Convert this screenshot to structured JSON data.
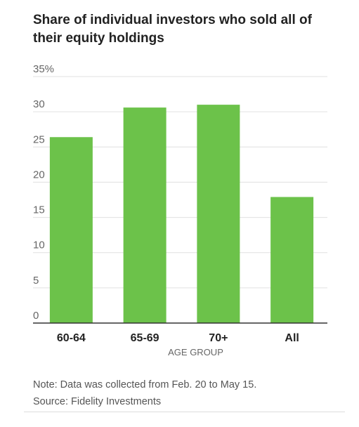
{
  "title": "Share of individual investors who sold all of their equity holdings",
  "note": "Note: Data was collected from Feb. 20 to May 15.",
  "source": "Source: Fidelity Investments",
  "colors": {
    "bar": "#6cc24a",
    "grid": "#e0e0e0",
    "axis": "#333333"
  },
  "chart_data": {
    "type": "bar",
    "title": "Share of individual investors who sold all of their equity holdings",
    "xlabel": "AGE GROUP",
    "ylabel": "",
    "categories": [
      "60-64",
      "65-69",
      "70+",
      "All"
    ],
    "values": [
      26.4,
      30.6,
      31.0,
      17.9
    ],
    "ylim": [
      0,
      35
    ],
    "yticks": [
      0,
      5,
      10,
      15,
      20,
      25,
      30,
      35
    ],
    "ytick_labels": [
      "0",
      "5",
      "10",
      "15",
      "20",
      "25",
      "30",
      "35%"
    ],
    "grid": true,
    "legend": "none"
  }
}
